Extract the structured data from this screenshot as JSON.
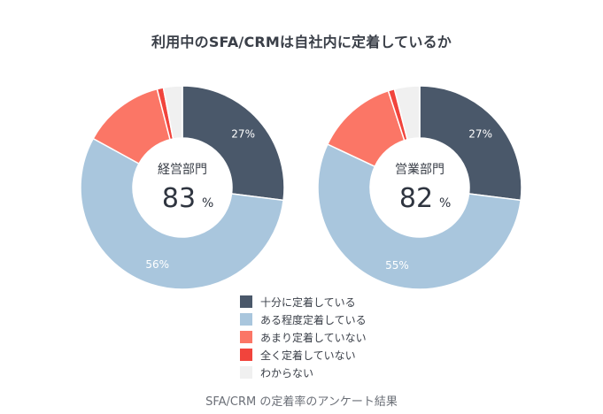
{
  "chart_data": {
    "type": "donut",
    "title": "利用中のSFA/CRMは自社内に定着しているか",
    "caption": "SFA/CRM の定着率のアンケート結果",
    "categories": [
      "十分に定着している",
      "ある程度定着している",
      "あまり定着していない",
      "全く定着していない",
      "わからない"
    ],
    "colors": [
      "#4a586a",
      "#a9c6dd",
      "#fb7666",
      "#f1443c",
      "#f0f0f0"
    ],
    "charts": [
      {
        "name": "経営部門",
        "center_value": "83",
        "center_unit": "%",
        "values": [
          27,
          56,
          13,
          1,
          3
        ],
        "labels": [
          "27%",
          "56%",
          "",
          "",
          ""
        ]
      },
      {
        "name": "営業部門",
        "center_value": "82",
        "center_unit": "%",
        "values": [
          27,
          55,
          13,
          1,
          4
        ],
        "labels": [
          "27%",
          "55%",
          "",
          "",
          ""
        ]
      }
    ]
  }
}
